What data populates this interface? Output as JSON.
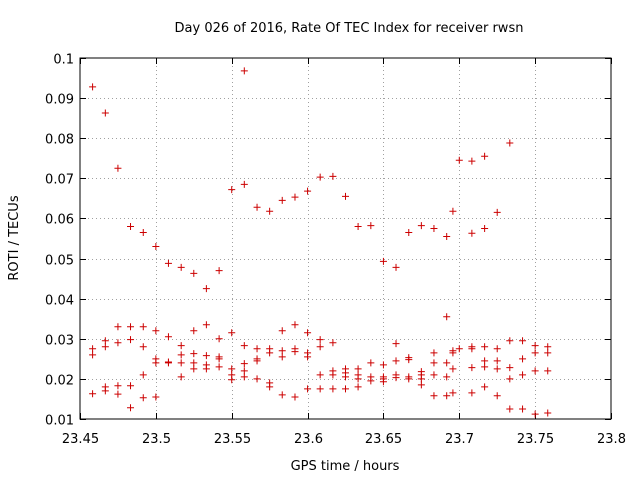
{
  "chart_data": {
    "type": "scatter",
    "title": "Day 026 of 2016, Rate Of TEC Index for receiver rwsn",
    "xlabel": "GPS time / hours",
    "ylabel": "ROTI / TECUs",
    "xlim": [
      23.45,
      23.8
    ],
    "ylim": [
      0.01,
      0.1
    ],
    "x_ticks": [
      23.45,
      23.5,
      23.55,
      23.6,
      23.65,
      23.7,
      23.75,
      23.8
    ],
    "x_tick_labels": [
      "23.45",
      "23.5",
      "23.55",
      "23.6",
      "23.65",
      "23.7",
      "23.75",
      "23.8"
    ],
    "y_ticks": [
      0.01,
      0.02,
      0.03,
      0.04,
      0.05,
      0.06,
      0.07,
      0.08,
      0.09,
      0.1
    ],
    "y_tick_labels": [
      "0.01",
      "0.02",
      "0.03",
      "0.04",
      "0.05",
      "0.06",
      "0.07",
      "0.08",
      "0.09",
      "0.1"
    ],
    "marker": "+",
    "color": "#cc0000",
    "grid": true,
    "series": [
      {
        "name": "ROTI",
        "points": [
          [
            23.4583,
            0.0928
          ],
          [
            23.4583,
            0.0275
          ],
          [
            23.4583,
            0.026
          ],
          [
            23.4583,
            0.0163
          ],
          [
            23.4667,
            0.0863
          ],
          [
            23.4667,
            0.0295
          ],
          [
            23.4667,
            0.028
          ],
          [
            23.4667,
            0.018
          ],
          [
            23.4667,
            0.017
          ],
          [
            23.475,
            0.0725
          ],
          [
            23.475,
            0.033
          ],
          [
            23.475,
            0.029
          ],
          [
            23.475,
            0.0183
          ],
          [
            23.475,
            0.0162
          ],
          [
            23.4833,
            0.058
          ],
          [
            23.4833,
            0.033
          ],
          [
            23.4833,
            0.0298
          ],
          [
            23.4833,
            0.0183
          ],
          [
            23.4833,
            0.0128
          ],
          [
            23.4917,
            0.0565
          ],
          [
            23.4917,
            0.033
          ],
          [
            23.4917,
            0.028
          ],
          [
            23.4917,
            0.021
          ],
          [
            23.4917,
            0.0153
          ],
          [
            23.5,
            0.053
          ],
          [
            23.5,
            0.032
          ],
          [
            23.5,
            0.025
          ],
          [
            23.5,
            0.024
          ],
          [
            23.5,
            0.0155
          ],
          [
            23.5083,
            0.0488
          ],
          [
            23.5083,
            0.0305
          ],
          [
            23.5083,
            0.0242
          ],
          [
            23.5083,
            0.024
          ],
          [
            23.5167,
            0.0478
          ],
          [
            23.5167,
            0.0283
          ],
          [
            23.5167,
            0.026
          ],
          [
            23.5167,
            0.024
          ],
          [
            23.5167,
            0.0205
          ],
          [
            23.525,
            0.0463
          ],
          [
            23.525,
            0.032
          ],
          [
            23.525,
            0.0263
          ],
          [
            23.525,
            0.024
          ],
          [
            23.525,
            0.0225
          ],
          [
            23.5333,
            0.0425
          ],
          [
            23.5333,
            0.0335
          ],
          [
            23.5333,
            0.0258
          ],
          [
            23.5333,
            0.0235
          ],
          [
            23.5333,
            0.0225
          ],
          [
            23.5417,
            0.047
          ],
          [
            23.5417,
            0.03
          ],
          [
            23.5417,
            0.0255
          ],
          [
            23.5417,
            0.025
          ],
          [
            23.5417,
            0.023
          ],
          [
            23.55,
            0.0672
          ],
          [
            23.55,
            0.0315
          ],
          [
            23.55,
            0.0225
          ],
          [
            23.55,
            0.021
          ],
          [
            23.55,
            0.0198
          ],
          [
            23.5583,
            0.0968
          ],
          [
            23.5583,
            0.0685
          ],
          [
            23.5583,
            0.0283
          ],
          [
            23.5583,
            0.0238
          ],
          [
            23.5583,
            0.022
          ],
          [
            23.5583,
            0.0205
          ],
          [
            23.5667,
            0.0628
          ],
          [
            23.5667,
            0.0275
          ],
          [
            23.5667,
            0.025
          ],
          [
            23.5667,
            0.0245
          ],
          [
            23.5667,
            0.02
          ],
          [
            23.575,
            0.0618
          ],
          [
            23.575,
            0.0275
          ],
          [
            23.575,
            0.0265
          ],
          [
            23.575,
            0.019
          ],
          [
            23.575,
            0.018
          ],
          [
            23.5833,
            0.0645
          ],
          [
            23.5833,
            0.032
          ],
          [
            23.5833,
            0.027
          ],
          [
            23.5833,
            0.0255
          ],
          [
            23.5833,
            0.016
          ],
          [
            23.5917,
            0.0653
          ],
          [
            23.5917,
            0.0335
          ],
          [
            23.5917,
            0.0275
          ],
          [
            23.5917,
            0.0268
          ],
          [
            23.5917,
            0.0155
          ],
          [
            23.6,
            0.0668
          ],
          [
            23.6,
            0.0315
          ],
          [
            23.6,
            0.0265
          ],
          [
            23.6,
            0.0255
          ],
          [
            23.6,
            0.0175
          ],
          [
            23.6083,
            0.0703
          ],
          [
            23.6083,
            0.0298
          ],
          [
            23.6083,
            0.028
          ],
          [
            23.6083,
            0.021
          ],
          [
            23.6083,
            0.0175
          ],
          [
            23.6167,
            0.0705
          ],
          [
            23.6167,
            0.029
          ],
          [
            23.6167,
            0.022
          ],
          [
            23.6167,
            0.021
          ],
          [
            23.6167,
            0.0175
          ],
          [
            23.625,
            0.0655
          ],
          [
            23.625,
            0.0225
          ],
          [
            23.625,
            0.0215
          ],
          [
            23.625,
            0.0205
          ],
          [
            23.625,
            0.0175
          ],
          [
            23.6333,
            0.058
          ],
          [
            23.6333,
            0.0225
          ],
          [
            23.6333,
            0.021
          ],
          [
            23.6333,
            0.02
          ],
          [
            23.6333,
            0.018
          ],
          [
            23.6417,
            0.0582
          ],
          [
            23.6417,
            0.024
          ],
          [
            23.6417,
            0.0205
          ],
          [
            23.6417,
            0.0195
          ],
          [
            23.65,
            0.0493
          ],
          [
            23.65,
            0.0235
          ],
          [
            23.65,
            0.0205
          ],
          [
            23.65,
            0.02
          ],
          [
            23.65,
            0.0193
          ],
          [
            23.6583,
            0.0478
          ],
          [
            23.6583,
            0.0288
          ],
          [
            23.6583,
            0.0245
          ],
          [
            23.6583,
            0.021
          ],
          [
            23.6583,
            0.0203
          ],
          [
            23.6667,
            0.0565
          ],
          [
            23.6667,
            0.0253
          ],
          [
            23.6667,
            0.0248
          ],
          [
            23.6667,
            0.0205
          ],
          [
            23.6667,
            0.02
          ],
          [
            23.675,
            0.0582
          ],
          [
            23.675,
            0.0218
          ],
          [
            23.675,
            0.021
          ],
          [
            23.675,
            0.02
          ],
          [
            23.675,
            0.0185
          ],
          [
            23.6833,
            0.0575
          ],
          [
            23.6833,
            0.0265
          ],
          [
            23.6833,
            0.024
          ],
          [
            23.6833,
            0.021
          ],
          [
            23.6833,
            0.0158
          ],
          [
            23.6917,
            0.0555
          ],
          [
            23.6917,
            0.0355
          ],
          [
            23.6917,
            0.024
          ],
          [
            23.6917,
            0.0205
          ],
          [
            23.6917,
            0.0158
          ],
          [
            23.6958,
            0.0618
          ],
          [
            23.6958,
            0.027
          ],
          [
            23.6958,
            0.0265
          ],
          [
            23.6958,
            0.0225
          ],
          [
            23.6958,
            0.0165
          ],
          [
            23.7,
            0.0745
          ],
          [
            23.7,
            0.0275
          ],
          [
            23.7083,
            0.0743
          ],
          [
            23.7083,
            0.0563
          ],
          [
            23.7083,
            0.028
          ],
          [
            23.7083,
            0.0275
          ],
          [
            23.7083,
            0.0228
          ],
          [
            23.7083,
            0.0165
          ],
          [
            23.7167,
            0.0755
          ],
          [
            23.7167,
            0.0575
          ],
          [
            23.7167,
            0.028
          ],
          [
            23.7167,
            0.0245
          ],
          [
            23.7167,
            0.023
          ],
          [
            23.7167,
            0.018
          ],
          [
            23.725,
            0.0615
          ],
          [
            23.725,
            0.0275
          ],
          [
            23.725,
            0.0245
          ],
          [
            23.725,
            0.0225
          ],
          [
            23.725,
            0.0158
          ],
          [
            23.7333,
            0.0788
          ],
          [
            23.7333,
            0.0295
          ],
          [
            23.7333,
            0.0228
          ],
          [
            23.7333,
            0.02
          ],
          [
            23.7333,
            0.0125
          ],
          [
            23.7417,
            0.0295
          ],
          [
            23.7417,
            0.025
          ],
          [
            23.7417,
            0.021
          ],
          [
            23.7417,
            0.0125
          ],
          [
            23.75,
            0.0283
          ],
          [
            23.75,
            0.0265
          ],
          [
            23.75,
            0.022
          ],
          [
            23.75,
            0.0112
          ],
          [
            23.7583,
            0.028
          ],
          [
            23.7583,
            0.0265
          ],
          [
            23.7583,
            0.022
          ],
          [
            23.7583,
            0.0115
          ]
        ]
      }
    ]
  }
}
